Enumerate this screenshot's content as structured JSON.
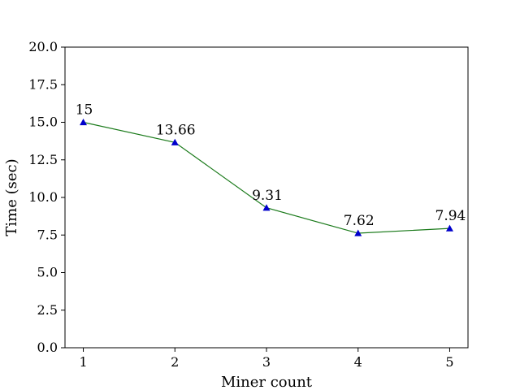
{
  "chart_data": {
    "type": "line",
    "title": "",
    "xlabel": "Miner count",
    "ylabel": "Time (sec)",
    "x": [
      1,
      2,
      3,
      4,
      5
    ],
    "xticks": [
      "1",
      "2",
      "3",
      "4",
      "5"
    ],
    "xlim": [
      0.8,
      5.2
    ],
    "ylim": [
      0.0,
      20.0
    ],
    "yticks": [
      "0.0",
      "2.5",
      "5.0",
      "7.5",
      "10.0",
      "12.5",
      "15.0",
      "17.5",
      "20.0"
    ],
    "grid": false,
    "series": [
      {
        "values": [
          15,
          13.66,
          9.31,
          7.62,
          7.94
        ],
        "labels": [
          "15",
          "13.66",
          "9.31",
          "7.62",
          "7.94"
        ],
        "line_color": "#1a7a1a",
        "marker": "triangle",
        "marker_color": "#0000cc"
      }
    ]
  }
}
